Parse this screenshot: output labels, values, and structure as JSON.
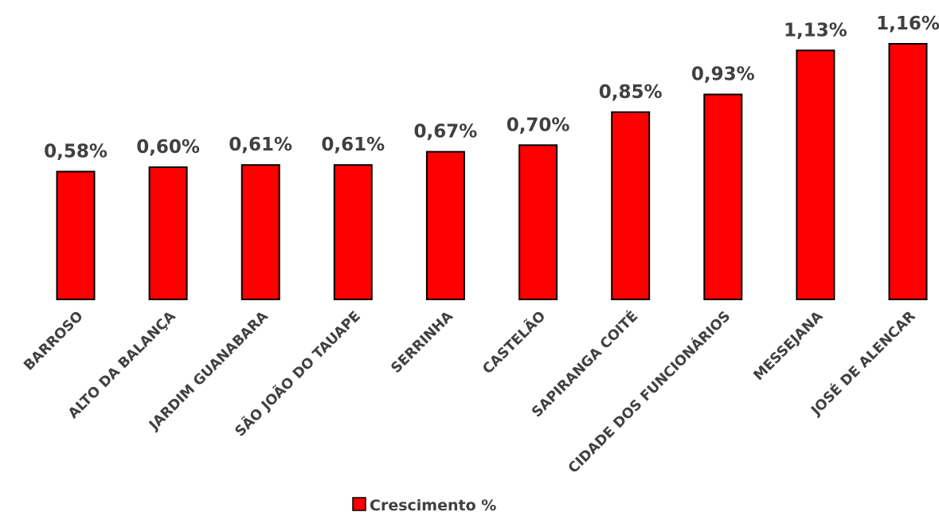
{
  "chart_data": {
    "type": "bar",
    "categories": [
      "BARROSO",
      "ALTO DA BALANÇA",
      "JARDIM GUANABARA",
      "SÃO JOÃO DO TAUAPE",
      "SERRINHA",
      "CASTELÃO",
      "SAPIRANGA COITÉ",
      "CIDADE DOS FUNCIONÁRIOS",
      "MESSEJANA",
      "JOSÉ DE ALENCAR"
    ],
    "series": [
      {
        "name": "Crescimento %",
        "values": [
          0.58,
          0.6,
          0.61,
          0.61,
          0.67,
          0.7,
          0.85,
          0.93,
          1.13,
          1.16
        ],
        "labels": [
          "0,58%",
          "0,60%",
          "0,61%",
          "0,61%",
          "0,67%",
          "0,70%",
          "0,85%",
          "0,93%",
          "1,13%",
          "1,16%"
        ],
        "color": "#FF0000"
      }
    ],
    "title": "",
    "xlabel": "",
    "ylabel": "",
    "ylim": [
      0,
      1.16
    ],
    "grid": false,
    "legend_position": "bottom",
    "bar_border_color": "#000000"
  }
}
